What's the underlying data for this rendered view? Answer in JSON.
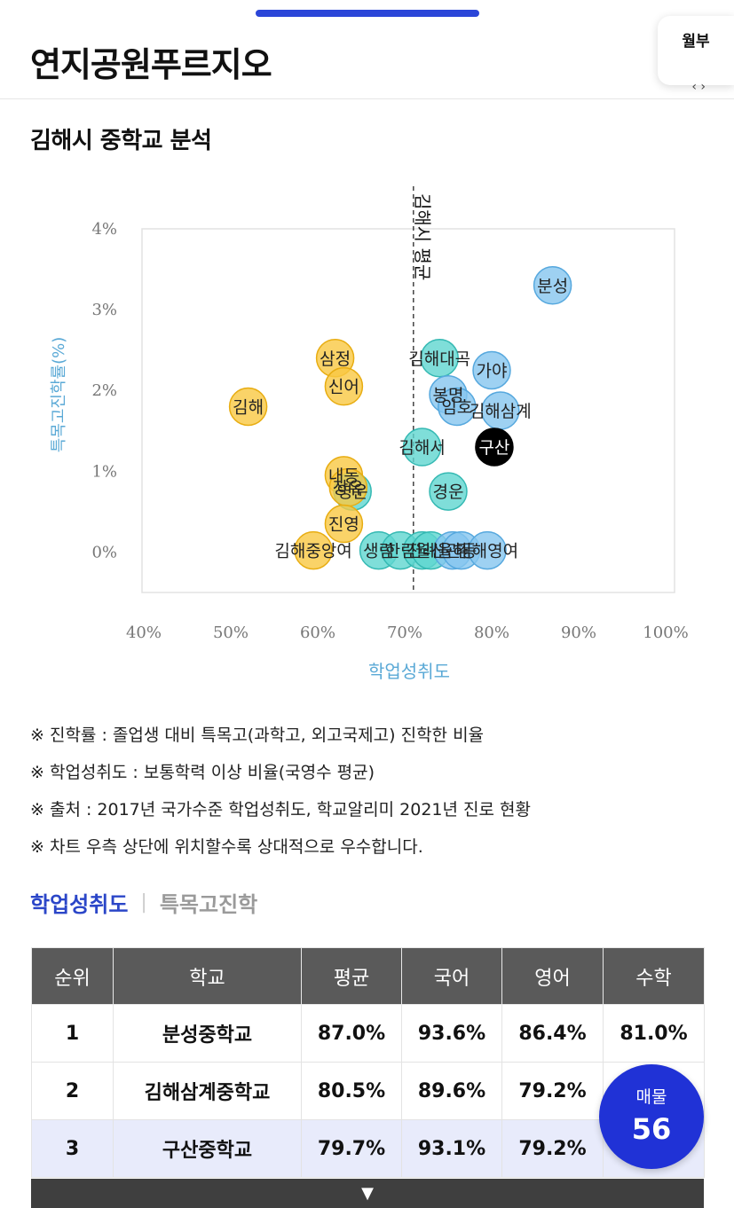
{
  "header": {
    "title": "연지공원푸르지오",
    "monthly_label": "월부"
  },
  "section_title": "김해시 중학교 분석",
  "chart_data": {
    "type": "scatter",
    "xlabel": "학업성취도",
    "ylabel": "특목고진학률(%)",
    "xlim": [
      40,
      100
    ],
    "ylim": [
      -0.5,
      4.0
    ],
    "x_ticks": [
      "40%",
      "50%",
      "60%",
      "70%",
      "80%",
      "90%",
      "100%"
    ],
    "x_tick_values": [
      40,
      50,
      60,
      70,
      80,
      90,
      100
    ],
    "y_ticks": [
      "0%",
      "1%",
      "2%",
      "3%",
      "4%"
    ],
    "y_tick_values": [
      0,
      1,
      2,
      3,
      4
    ],
    "grid": false,
    "average_line": {
      "label": "김해시 평균",
      "x": 71
    },
    "colors": {
      "yellow": "#f9c842",
      "teal": "#5fd6d0",
      "blue": "#86c6ef",
      "black": "#000000"
    },
    "points": [
      {
        "label": "분성",
        "x": 87,
        "y": 3.3,
        "color": "blue"
      },
      {
        "label": "가야",
        "x": 80,
        "y": 2.25,
        "color": "blue"
      },
      {
        "label": "김해대곡",
        "x": 74,
        "y": 2.4,
        "color": "teal"
      },
      {
        "label": "봉명",
        "x": 75,
        "y": 1.95,
        "color": "blue"
      },
      {
        "label": "임호",
        "x": 76,
        "y": 1.8,
        "color": "blue"
      },
      {
        "label": "김해삼계",
        "x": 81,
        "y": 1.75,
        "color": "blue"
      },
      {
        "label": "구산",
        "x": 80.3,
        "y": 1.3,
        "color": "black"
      },
      {
        "label": "김해서",
        "x": 72,
        "y": 1.3,
        "color": "teal"
      },
      {
        "label": "경운",
        "x": 75,
        "y": 0.75,
        "color": "teal"
      },
      {
        "label": "삼정",
        "x": 62,
        "y": 2.4,
        "color": "yellow"
      },
      {
        "label": "신어",
        "x": 63,
        "y": 2.05,
        "color": "yellow"
      },
      {
        "label": "김해",
        "x": 52,
        "y": 1.8,
        "color": "yellow"
      },
      {
        "label": "내동",
        "x": 63,
        "y": 0.95,
        "color": "yellow"
      },
      {
        "label": "영운",
        "x": 64,
        "y": 0.75,
        "color": "teal"
      },
      {
        "label": "장유",
        "x": 63.5,
        "y": 0.8,
        "color": "yellow"
      },
      {
        "label": "진영",
        "x": 63,
        "y": 0.35,
        "color": "yellow"
      },
      {
        "label": "김해중앙여",
        "x": 59.5,
        "y": 0.02,
        "color": "yellow"
      },
      {
        "label": "생림",
        "x": 67,
        "y": 0.02,
        "color": "teal"
      },
      {
        "label": "한림",
        "x": 69.5,
        "y": 0.02,
        "color": "teal"
      },
      {
        "label": "진례",
        "x": 72,
        "y": 0.02,
        "color": "teal"
      },
      {
        "label": "월산",
        "x": 73,
        "y": 0.02,
        "color": "teal"
      },
      {
        "label": "율하",
        "x": 75.5,
        "y": 0.02,
        "color": "blue"
      },
      {
        "label": "관동",
        "x": 76.5,
        "y": 0.02,
        "color": "blue"
      },
      {
        "label": "김해영여",
        "x": 79.5,
        "y": 0.02,
        "color": "blue"
      }
    ]
  },
  "notes": [
    "※ 진학률 : 졸업생 대비 특목고(과학고, 외고국제고) 진학한 비율",
    "※ 학업성취도 : 보통학력 이상 비율(국영수 평균)",
    "※ 출처 : 2017년 국가수준 학업성취도, 학교알리미 2021년 진로 현황",
    "※ 차트 우측 상단에 위치할수록 상대적으로 우수합니다."
  ],
  "tabs": {
    "active": "학업성취도",
    "separator": "|",
    "inactive": "특목고진학"
  },
  "table": {
    "headers": [
      "순위",
      "학교",
      "평균",
      "국어",
      "영어",
      "수학"
    ],
    "rows": [
      [
        "1",
        "분성중학교",
        "87.0%",
        "93.6%",
        "86.4%",
        "81.0%"
      ],
      [
        "2",
        "김해삼계중학교",
        "80.5%",
        "89.6%",
        "79.2%",
        ""
      ],
      [
        "3",
        "구산중학교",
        "79.7%",
        "93.1%",
        "79.2%",
        ""
      ]
    ],
    "expand_icon": "▼"
  },
  "badge": {
    "label": "매물",
    "count": "56"
  }
}
